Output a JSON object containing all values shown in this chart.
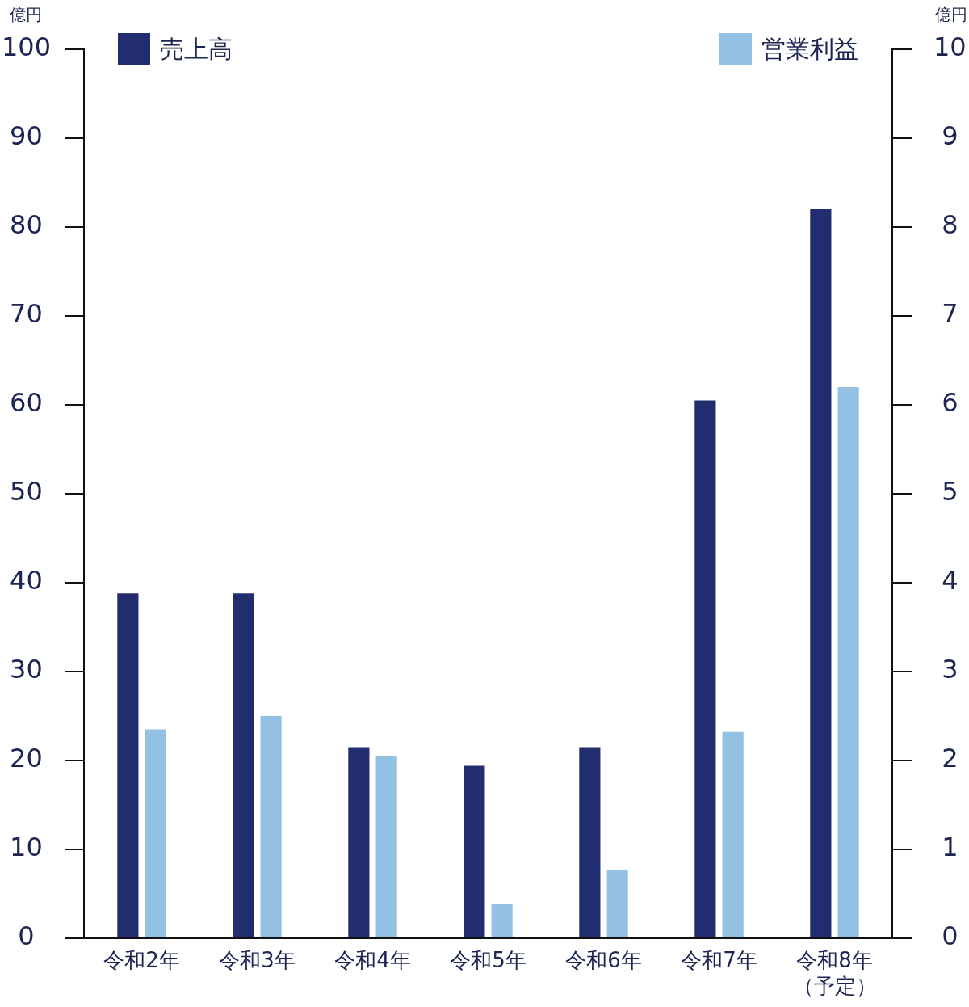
{
  "chart_data": {
    "type": "bar",
    "ylabel": "億円",
    "y2label": "億円",
    "categories": [
      "令和2年",
      "令和3年",
      "令和4年",
      "令和5年",
      "令和6年",
      "令和7年",
      "令和8年（予定）"
    ],
    "series": [
      {
        "name": "売上高",
        "color": "#212d6e",
        "values": [
          38.8,
          38.8,
          21.5,
          19.4,
          21.5,
          60.5,
          82.1
        ]
      },
      {
        "name": "営業利益",
        "color": "#93c1e4",
        "axis": "y2",
        "values": [
          2.35,
          2.5,
          2.05,
          0.39,
          0.77,
          2.32,
          6.2
        ]
      }
    ],
    "ylim": [
      0,
      100
    ],
    "yticks": [
      0,
      10,
      20,
      30,
      40,
      50,
      60,
      70,
      80,
      90,
      100
    ],
    "y2lim": [
      0,
      10
    ],
    "y2ticks": [
      0,
      1,
      2,
      3,
      4,
      5,
      6,
      7,
      8,
      9,
      10
    ],
    "legend": "top"
  }
}
